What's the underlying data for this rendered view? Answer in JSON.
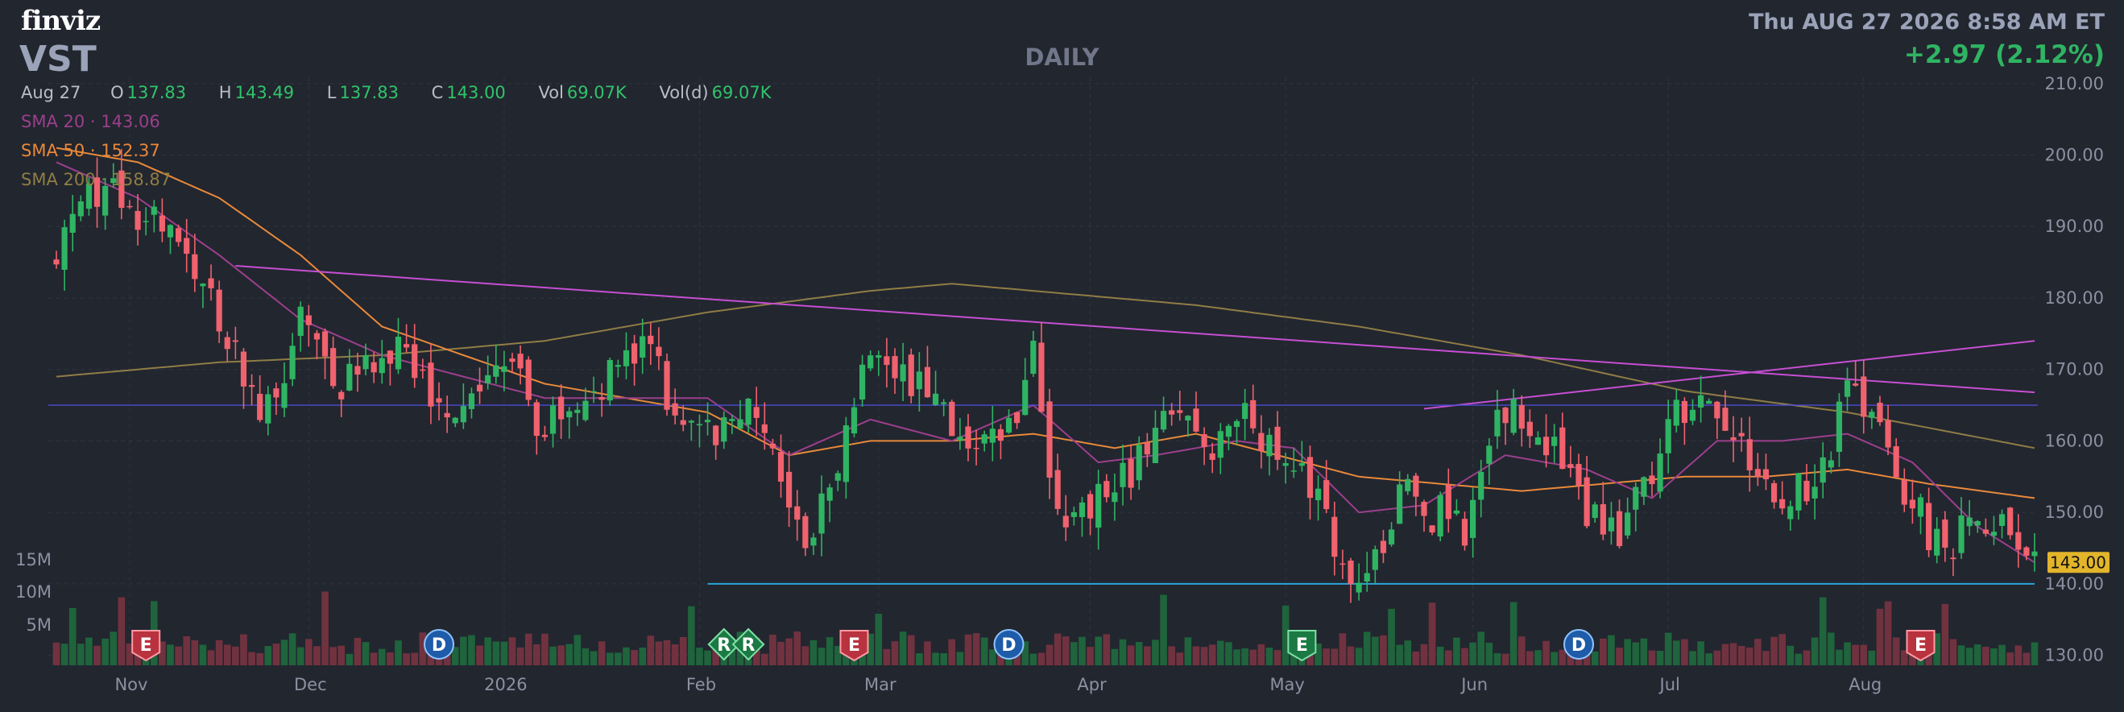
{
  "header": {
    "logo": "finviz",
    "ticker": "VST",
    "period": "DAILY",
    "datetime": "Thu AUG 27 2026 8:58 AM ET",
    "change": "+2.97 (2.12%)"
  },
  "ohlc": {
    "date": "Aug 27",
    "o_label": "O",
    "o": "137.83",
    "h_label": "H",
    "h": "143.49",
    "l_label": "L",
    "l": "137.83",
    "c_label": "C",
    "c": "143.00",
    "vol_label": "Vol",
    "vol": "69.07K",
    "vold_label": "Vol(d)",
    "vold": "69.07K"
  },
  "sma": [
    {
      "label": "SMA 20",
      "sep": "·",
      "value": "143.06",
      "color": "#9b3f8c"
    },
    {
      "label": "SMA 50",
      "sep": "·",
      "value": "152.37",
      "color": "#e8893a"
    },
    {
      "label": "SMA 200",
      "sep": "·",
      "value": "158.87",
      "color": "#8f7d45"
    }
  ],
  "colors": {
    "up": "#2fb463",
    "down": "#f0626e",
    "trendline": "#c64fd3",
    "support": "#2aa5d8",
    "resistance": "#4c4bd6"
  },
  "chart_data": {
    "type": "candlestick",
    "x_ticks": [
      "Nov",
      "Dec",
      "2026",
      "Feb",
      "Mar",
      "Apr",
      "May",
      "Jun",
      "Jul",
      "Aug"
    ],
    "y_ticks": [
      "210.00",
      "200.00",
      "190.00",
      "180.00",
      "170.00",
      "160.00",
      "150.00",
      "140.00",
      "130.00"
    ],
    "ylim": [
      127,
      211
    ],
    "volume_ticks": [
      "15M",
      "10M",
      "5M"
    ],
    "last_price_label": "143.00",
    "close_anchors": [
      [
        0,
        186
      ],
      [
        6,
        197
      ],
      [
        14,
        188
      ],
      [
        20,
        178
      ],
      [
        25,
        163
      ],
      [
        30,
        176
      ],
      [
        35,
        168
      ],
      [
        42,
        172
      ],
      [
        48,
        163
      ],
      [
        55,
        173
      ],
      [
        60,
        161
      ],
      [
        64,
        165
      ],
      [
        70,
        170
      ],
      [
        73,
        176
      ],
      [
        76,
        163
      ],
      [
        82,
        161
      ],
      [
        86,
        166
      ],
      [
        90,
        150
      ],
      [
        93,
        146
      ],
      [
        97,
        161
      ],
      [
        100,
        173
      ],
      [
        103,
        169
      ],
      [
        106,
        168
      ],
      [
        112,
        157
      ],
      [
        117,
        161
      ],
      [
        120,
        172
      ],
      [
        123,
        148
      ],
      [
        128,
        152
      ],
      [
        132,
        155
      ],
      [
        137,
        163
      ],
      [
        142,
        157
      ],
      [
        145,
        164
      ],
      [
        150,
        160
      ],
      [
        156,
        149
      ],
      [
        160,
        139
      ],
      [
        166,
        155
      ],
      [
        169,
        150
      ],
      [
        173,
        148
      ],
      [
        178,
        165
      ],
      [
        184,
        158
      ],
      [
        188,
        151
      ],
      [
        192,
        145
      ],
      [
        197,
        159
      ],
      [
        202,
        169
      ],
      [
        206,
        162
      ],
      [
        212,
        150
      ],
      [
        217,
        157
      ],
      [
        221,
        169
      ],
      [
        226,
        155
      ],
      [
        232,
        144
      ],
      [
        236,
        150
      ],
      [
        240,
        146
      ],
      [
        243,
        143
      ]
    ],
    "sma20": [
      [
        0,
        199
      ],
      [
        10,
        194
      ],
      [
        20,
        186
      ],
      [
        30,
        177
      ],
      [
        40,
        172
      ],
      [
        50,
        169
      ],
      [
        60,
        166
      ],
      [
        70,
        166
      ],
      [
        80,
        166
      ],
      [
        90,
        158
      ],
      [
        100,
        163
      ],
      [
        110,
        160
      ],
      [
        120,
        165
      ],
      [
        128,
        157
      ],
      [
        135,
        158
      ],
      [
        145,
        160
      ],
      [
        152,
        159
      ],
      [
        160,
        150
      ],
      [
        168,
        151
      ],
      [
        178,
        158
      ],
      [
        188,
        156
      ],
      [
        196,
        152
      ],
      [
        204,
        160
      ],
      [
        212,
        160
      ],
      [
        220,
        161
      ],
      [
        228,
        157
      ],
      [
        236,
        148
      ],
      [
        243,
        143
      ]
    ],
    "sma50": [
      [
        0,
        201
      ],
      [
        10,
        199
      ],
      [
        20,
        194
      ],
      [
        30,
        186
      ],
      [
        40,
        176
      ],
      [
        50,
        172
      ],
      [
        60,
        168
      ],
      [
        70,
        166
      ],
      [
        80,
        164
      ],
      [
        90,
        158
      ],
      [
        100,
        160
      ],
      [
        110,
        160
      ],
      [
        120,
        161
      ],
      [
        130,
        159
      ],
      [
        140,
        161
      ],
      [
        150,
        158
      ],
      [
        160,
        155
      ],
      [
        170,
        154
      ],
      [
        180,
        153
      ],
      [
        190,
        154
      ],
      [
        200,
        155
      ],
      [
        210,
        155
      ],
      [
        220,
        156
      ],
      [
        230,
        154
      ],
      [
        243,
        152
      ]
    ],
    "sma200": [
      [
        0,
        169
      ],
      [
        20,
        171
      ],
      [
        40,
        172
      ],
      [
        60,
        174
      ],
      [
        80,
        178
      ],
      [
        100,
        181
      ],
      [
        110,
        182
      ],
      [
        120,
        181
      ],
      [
        140,
        179
      ],
      [
        160,
        176
      ],
      [
        180,
        172
      ],
      [
        200,
        167
      ],
      [
        220,
        164
      ],
      [
        243,
        159
      ]
    ],
    "trendlines": [
      {
        "kind": "resistance",
        "from": [
          22,
          184.5
        ],
        "to": [
          243,
          166.8
        ]
      },
      {
        "kind": "rising",
        "from": [
          168,
          164.5
        ],
        "to": [
          243,
          174
        ]
      },
      {
        "kind": "horizontal",
        "from": [
          0,
          165
        ],
        "to": [
          243,
          165
        ]
      },
      {
        "kind": "support",
        "from": [
          80,
          140
        ],
        "to": [
          243,
          140
        ]
      }
    ],
    "events": [
      {
        "i": 11,
        "label": "E",
        "type": "earnings"
      },
      {
        "i": 47,
        "label": "D",
        "type": "dividend"
      },
      {
        "i": 82,
        "label": "R",
        "type": "split"
      },
      {
        "i": 85,
        "label": "R",
        "type": "split"
      },
      {
        "i": 98,
        "label": "E",
        "type": "earnings"
      },
      {
        "i": 117,
        "label": "D",
        "type": "dividend"
      },
      {
        "i": 153,
        "label": "E",
        "type": "earnings-up"
      },
      {
        "i": 187,
        "label": "D",
        "type": "dividend"
      },
      {
        "i": 229,
        "label": "E",
        "type": "earnings"
      }
    ]
  }
}
